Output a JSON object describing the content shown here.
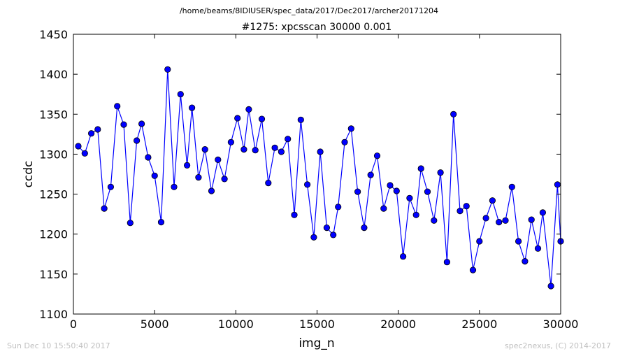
{
  "chart_data": {
    "type": "line",
    "suptitle": "/home/beams/8IDIUSER/spec_data/2017/Dec2017/archer20171204",
    "title": "#1275: xpcsscan 30000 0.001",
    "xlabel": "img_n",
    "ylabel": "ccdc",
    "xlim": [
      0,
      30000
    ],
    "ylim": [
      1100,
      1450
    ],
    "xticks": [
      0,
      5000,
      10000,
      15000,
      20000,
      25000,
      30000
    ],
    "yticks": [
      1100,
      1150,
      1200,
      1250,
      1300,
      1350,
      1400,
      1450
    ],
    "grid": false,
    "legend": "none",
    "line_color": "#0000ff",
    "marker_color": "#0000ff",
    "series": [
      {
        "x": [
          300,
          700,
          1100,
          1500,
          1900,
          2300,
          2700,
          3100,
          3500,
          3900,
          4200,
          4600,
          5000,
          5400,
          5800,
          6200,
          6600,
          7000,
          7300,
          7700,
          8100,
          8500,
          8900,
          9300,
          9700,
          10100,
          10500,
          10800,
          11200,
          11600,
          12000,
          12400,
          12800,
          13200,
          13600,
          14000,
          14400,
          14800,
          15200,
          15600,
          16000,
          16300,
          16700,
          17100,
          17500,
          17900,
          18300,
          18700,
          19100,
          19500,
          19900,
          20300,
          20700,
          21100,
          21400,
          21800,
          22200,
          22600,
          23000,
          23400,
          23800,
          24200,
          24600,
          25000,
          25400,
          25800,
          26200,
          26600,
          27000,
          27400,
          27800,
          28200,
          28600,
          28900,
          29400,
          29800,
          30000
        ],
        "y": [
          1310,
          1301,
          1326,
          1331,
          1232,
          1259,
          1360,
          1337,
          1214,
          1317,
          1338,
          1296,
          1273,
          1215,
          1406,
          1259,
          1375,
          1286,
          1358,
          1271,
          1306,
          1254,
          1293,
          1269,
          1315,
          1345,
          1306,
          1356,
          1305,
          1344,
          1264,
          1308,
          1303,
          1319,
          1224,
          1343,
          1262,
          1196,
          1303,
          1208,
          1199,
          1234,
          1315,
          1332,
          1253,
          1208,
          1274,
          1298,
          1232,
          1261,
          1254,
          1172,
          1245,
          1224,
          1282,
          1253,
          1217,
          1277,
          1165,
          1350,
          1229,
          1235,
          1155,
          1191,
          1220,
          1242,
          1215,
          1217,
          1259,
          1191,
          1166,
          1218,
          1182,
          1227,
          1135,
          1262,
          1191
        ]
      }
    ]
  },
  "footer": {
    "timestamp": "Sun Dec 10 15:50:40 2017",
    "credit": "spec2nexus, (C) 2014-2017"
  }
}
